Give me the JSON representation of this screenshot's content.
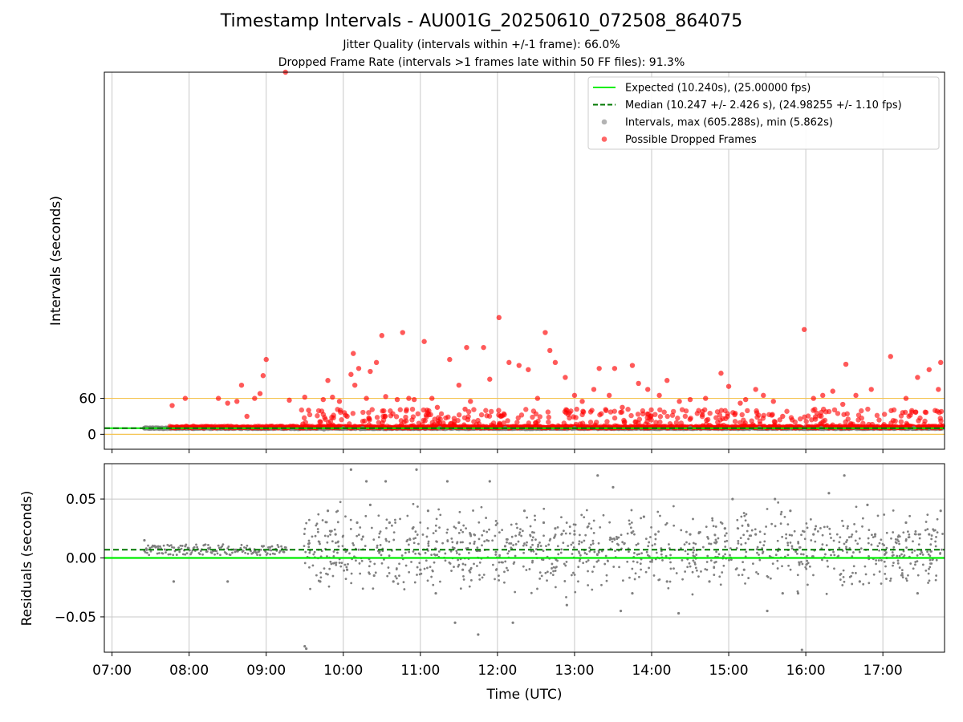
{
  "figure": {
    "title": "Timestamp Intervals - AU001G_20250610_072508_864075",
    "subtitle_jitter": "Jitter Quality (intervals within +/-1 frame): 66.0%",
    "subtitle_dropped": "Dropped Frame Rate (intervals >1 frames late within 50 FF files): 91.3%"
  },
  "colors": {
    "expected": "#00ee00",
    "median": "#007700",
    "intervals": "#808080",
    "dropped": "#ff0000",
    "threshold": "#f5c452",
    "grid": "#c8c8c8"
  },
  "chart_data": [
    {
      "type": "scatter",
      "panel": "top",
      "ylabel": "Intervals (seconds)",
      "xlabel": "",
      "x_unit": "hours UTC",
      "xlim": [
        6.9,
        17.8
      ],
      "ylim": [
        -25,
        605
      ],
      "ytick_labels": [
        "0",
        "60"
      ],
      "ytick_values": [
        0,
        60
      ],
      "horizontal_lines": [
        0,
        60
      ],
      "grid": "x only",
      "legend_position": "top-right",
      "legend": [
        {
          "label": "Expected (10.240s), (25.00000 fps)",
          "style": "solid-line",
          "color_key": "expected"
        },
        {
          "label": "Median (10.247 +/- 2.426 s), (24.98255 +/- 1.10 fps)",
          "style": "dashed-line",
          "color_key": "median"
        },
        {
          "label": "Intervals, max (605.288s), min (5.862s)",
          "style": "dot",
          "color_key": "intervals"
        },
        {
          "label": "Possible Dropped Frames",
          "style": "dot",
          "color_key": "dropped"
        }
      ],
      "series": [
        {
          "name": "Expected (10.240s), (25.00000 fps)",
          "kind": "hline",
          "y": 10.24
        },
        {
          "name": "Median (10.247 +/- 2.426 s), (24.98255 +/- 1.10 fps)",
          "kind": "hline",
          "y": 10.247
        },
        {
          "name": "Intervals, max (605.288s), min (5.862s)",
          "kind": "scatter",
          "note_points": "baseline band near 10 s from 07:25 to 17:50",
          "x": [
            7.42,
            7.5,
            7.6,
            7.7,
            9.75,
            10.0,
            10.25,
            11.25,
            12.1,
            13.0,
            14.5,
            15.4,
            16.2,
            17.4
          ],
          "y": [
            10.24,
            10.2,
            10.3,
            10.25,
            8.5,
            9.8,
            10.1,
            10.3,
            10.2,
            10.0,
            10.4,
            10.1,
            10.2,
            10.3
          ]
        },
        {
          "name": "Possible Dropped Frames",
          "kind": "scatter",
          "x": [
            7.78,
            7.95,
            8.38,
            8.5,
            8.62,
            8.68,
            8.75,
            8.85,
            8.92,
            8.96,
            9.0,
            9.25,
            9.3,
            9.5,
            9.55,
            9.74,
            9.8,
            9.86,
            9.95,
            10.05,
            10.1,
            10.13,
            10.15,
            10.2,
            10.3,
            10.35,
            10.43,
            10.5,
            10.55,
            10.7,
            10.77,
            10.85,
            10.92,
            11.05,
            11.15,
            11.22,
            11.38,
            11.5,
            11.58,
            11.6,
            11.65,
            11.82,
            11.9,
            12.02,
            12.15,
            12.28,
            12.4,
            12.52,
            12.62,
            12.68,
            12.75,
            12.88,
            13.0,
            13.1,
            13.25,
            13.32,
            13.45,
            13.52,
            13.62,
            13.75,
            13.83,
            13.95,
            14.1,
            14.2,
            14.36,
            14.5,
            14.7,
            14.9,
            15.0,
            15.15,
            15.22,
            15.35,
            15.45,
            15.58,
            15.7,
            15.98,
            16.1,
            16.22,
            16.35,
            16.48,
            16.52,
            16.65,
            16.85,
            17.1,
            17.3,
            17.45,
            17.6,
            17.72,
            17.75
          ],
          "y": [
            48,
            60,
            60,
            52,
            55,
            82,
            30,
            60,
            68,
            98,
            125,
            605,
            57,
            62,
            40,
            58,
            90,
            62,
            55,
            30,
            100,
            135,
            82,
            110,
            60,
            105,
            120,
            165,
            63,
            58,
            170,
            60,
            58,
            155,
            60,
            45,
            125,
            82,
            42,
            145,
            55,
            145,
            92,
            195,
            120,
            115,
            108,
            60,
            170,
            140,
            120,
            95,
            65,
            55,
            75,
            110,
            65,
            110,
            45,
            115,
            85,
            75,
            65,
            90,
            55,
            58,
            60,
            102,
            80,
            52,
            58,
            75,
            65,
            55,
            30,
            175,
            60,
            65,
            72,
            50,
            117,
            65,
            75,
            130,
            60,
            95,
            108,
            75,
            120
          ]
        }
      ]
    },
    {
      "type": "scatter",
      "panel": "bottom",
      "ylabel": "Residuals (seconds)",
      "xlabel": "Time (UTC)",
      "x_unit": "hours UTC",
      "xlim": [
        6.9,
        17.8
      ],
      "ylim": [
        -0.08,
        0.08
      ],
      "ytick_labels": [
        "0.05",
        "0.00",
        "−0.05"
      ],
      "ytick_values": [
        0.05,
        0.0,
        -0.05
      ],
      "xtick_labels": [
        "07:00",
        "08:00",
        "09:00",
        "10:00",
        "11:00",
        "12:00",
        "13:00",
        "14:00",
        "15:00",
        "16:00",
        "17:00"
      ],
      "xtick_values": [
        7,
        8,
        9,
        10,
        11,
        12,
        13,
        14,
        15,
        16,
        17
      ],
      "grid": "both",
      "series": [
        {
          "name": "Expected",
          "kind": "hline",
          "y": 0.0
        },
        {
          "name": "Median",
          "kind": "hline",
          "y": 0.007
        },
        {
          "name": "Residuals",
          "kind": "scatter",
          "x": [
            7.42,
            7.45,
            7.6,
            7.8,
            7.95,
            8.25,
            8.5,
            8.85,
            9.05,
            9.5,
            9.52,
            9.55,
            9.7,
            9.8,
            9.9,
            10.05,
            10.1,
            10.18,
            10.3,
            10.35,
            10.4,
            10.55,
            10.6,
            10.65,
            10.9,
            10.95,
            11.0,
            11.1,
            11.2,
            11.35,
            11.45,
            11.5,
            11.55,
            11.65,
            11.75,
            11.9,
            12.1,
            12.2,
            12.35,
            12.6,
            12.75,
            12.9,
            13.0,
            13.3,
            13.5,
            13.6,
            13.75,
            13.9,
            14.05,
            14.2,
            14.35,
            14.5,
            14.75,
            14.95,
            15.05,
            15.2,
            15.35,
            15.5,
            15.6,
            15.7,
            15.8,
            15.9,
            15.95,
            16.1,
            16.3,
            16.5,
            16.7,
            16.8,
            16.9,
            17.05,
            17.3,
            17.45,
            17.6,
            17.75
          ],
          "y": [
            0.015,
            0.007,
            0.008,
            -0.02,
            0.01,
            0.008,
            -0.02,
            0.006,
            0.009,
            -0.075,
            -0.077,
            0.012,
            -0.02,
            0.04,
            0.02,
            -0.01,
            0.075,
            0.03,
            0.065,
            0.045,
            -0.015,
            0.065,
            0.03,
            -0.02,
            0.025,
            0.075,
            -0.01,
            0.04,
            -0.03,
            0.065,
            -0.055,
            0.03,
            -0.01,
            0.02,
            -0.065,
            0.065,
            0.01,
            -0.055,
            0.04,
            0.03,
            0.025,
            -0.04,
            0.02,
            0.07,
            0.06,
            -0.045,
            -0.03,
            0.035,
            0.02,
            -0.02,
            -0.047,
            0.02,
            -0.02,
            0.025,
            0.05,
            -0.01,
            0.02,
            -0.045,
            0.05,
            -0.03,
            0.04,
            -0.03,
            -0.078,
            0.02,
            0.055,
            0.07,
            -0.02,
            0.045,
            0.02,
            0.0,
            0.03,
            -0.03,
            0.02,
            0.04
          ]
        }
      ]
    }
  ]
}
